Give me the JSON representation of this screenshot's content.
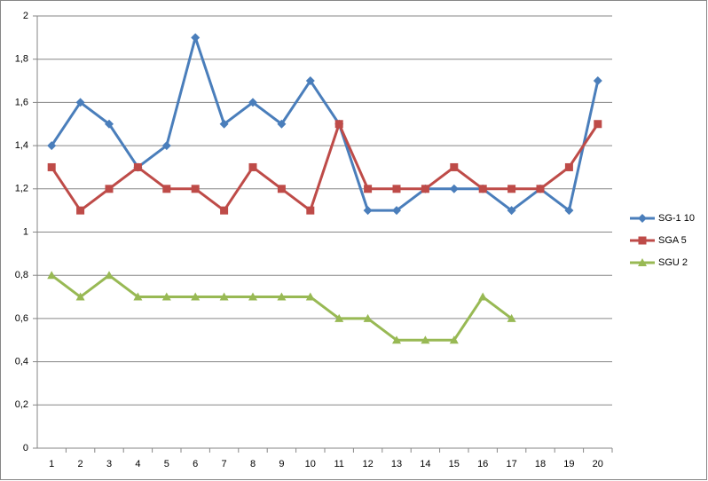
{
  "chart_data": {
    "type": "line",
    "categories": [
      "1",
      "2",
      "3",
      "4",
      "5",
      "6",
      "7",
      "8",
      "9",
      "10",
      "11",
      "12",
      "13",
      "14",
      "15",
      "16",
      "17",
      "18",
      "19",
      "20"
    ],
    "series": [
      {
        "name": "SG-1 10",
        "color": "#4a7ebb",
        "marker": "diamond",
        "values": [
          1.4,
          1.6,
          1.5,
          1.3,
          1.4,
          1.9,
          1.5,
          1.6,
          1.5,
          1.7,
          1.5,
          1.1,
          1.1,
          1.2,
          1.2,
          1.2,
          1.1,
          1.2,
          1.1,
          1.7
        ]
      },
      {
        "name": "SGA 5",
        "color": "#be4b48",
        "marker": "square",
        "values": [
          1.3,
          1.1,
          1.2,
          1.3,
          1.2,
          1.2,
          1.1,
          1.3,
          1.2,
          1.1,
          1.5,
          1.2,
          1.2,
          1.2,
          1.3,
          1.2,
          1.2,
          1.2,
          1.3,
          1.5
        ]
      },
      {
        "name": "SGU 2",
        "color": "#98b954",
        "marker": "triangle",
        "values": [
          0.8,
          0.7,
          0.8,
          0.7,
          0.7,
          0.7,
          0.7,
          0.7,
          0.7,
          0.7,
          0.6,
          0.6,
          0.5,
          0.5,
          0.5,
          0.7,
          0.6,
          null,
          null,
          null
        ]
      }
    ],
    "ylim": [
      0,
      2
    ],
    "yticks": [
      0,
      {
        "value": 0.2,
        "label": "0,2"
      },
      {
        "value": 0.4,
        "label": "0,4"
      },
      {
        "value": 0.6,
        "label": "0,6"
      },
      {
        "value": 0.8,
        "label": "0,8"
      },
      1,
      {
        "value": 1.2,
        "label": "1,2"
      },
      {
        "value": 1.4,
        "label": "1,4"
      },
      {
        "value": 1.6,
        "label": "1,6"
      },
      {
        "value": 1.8,
        "label": "1,8"
      },
      2
    ],
    "grid": true,
    "legend": "right"
  }
}
